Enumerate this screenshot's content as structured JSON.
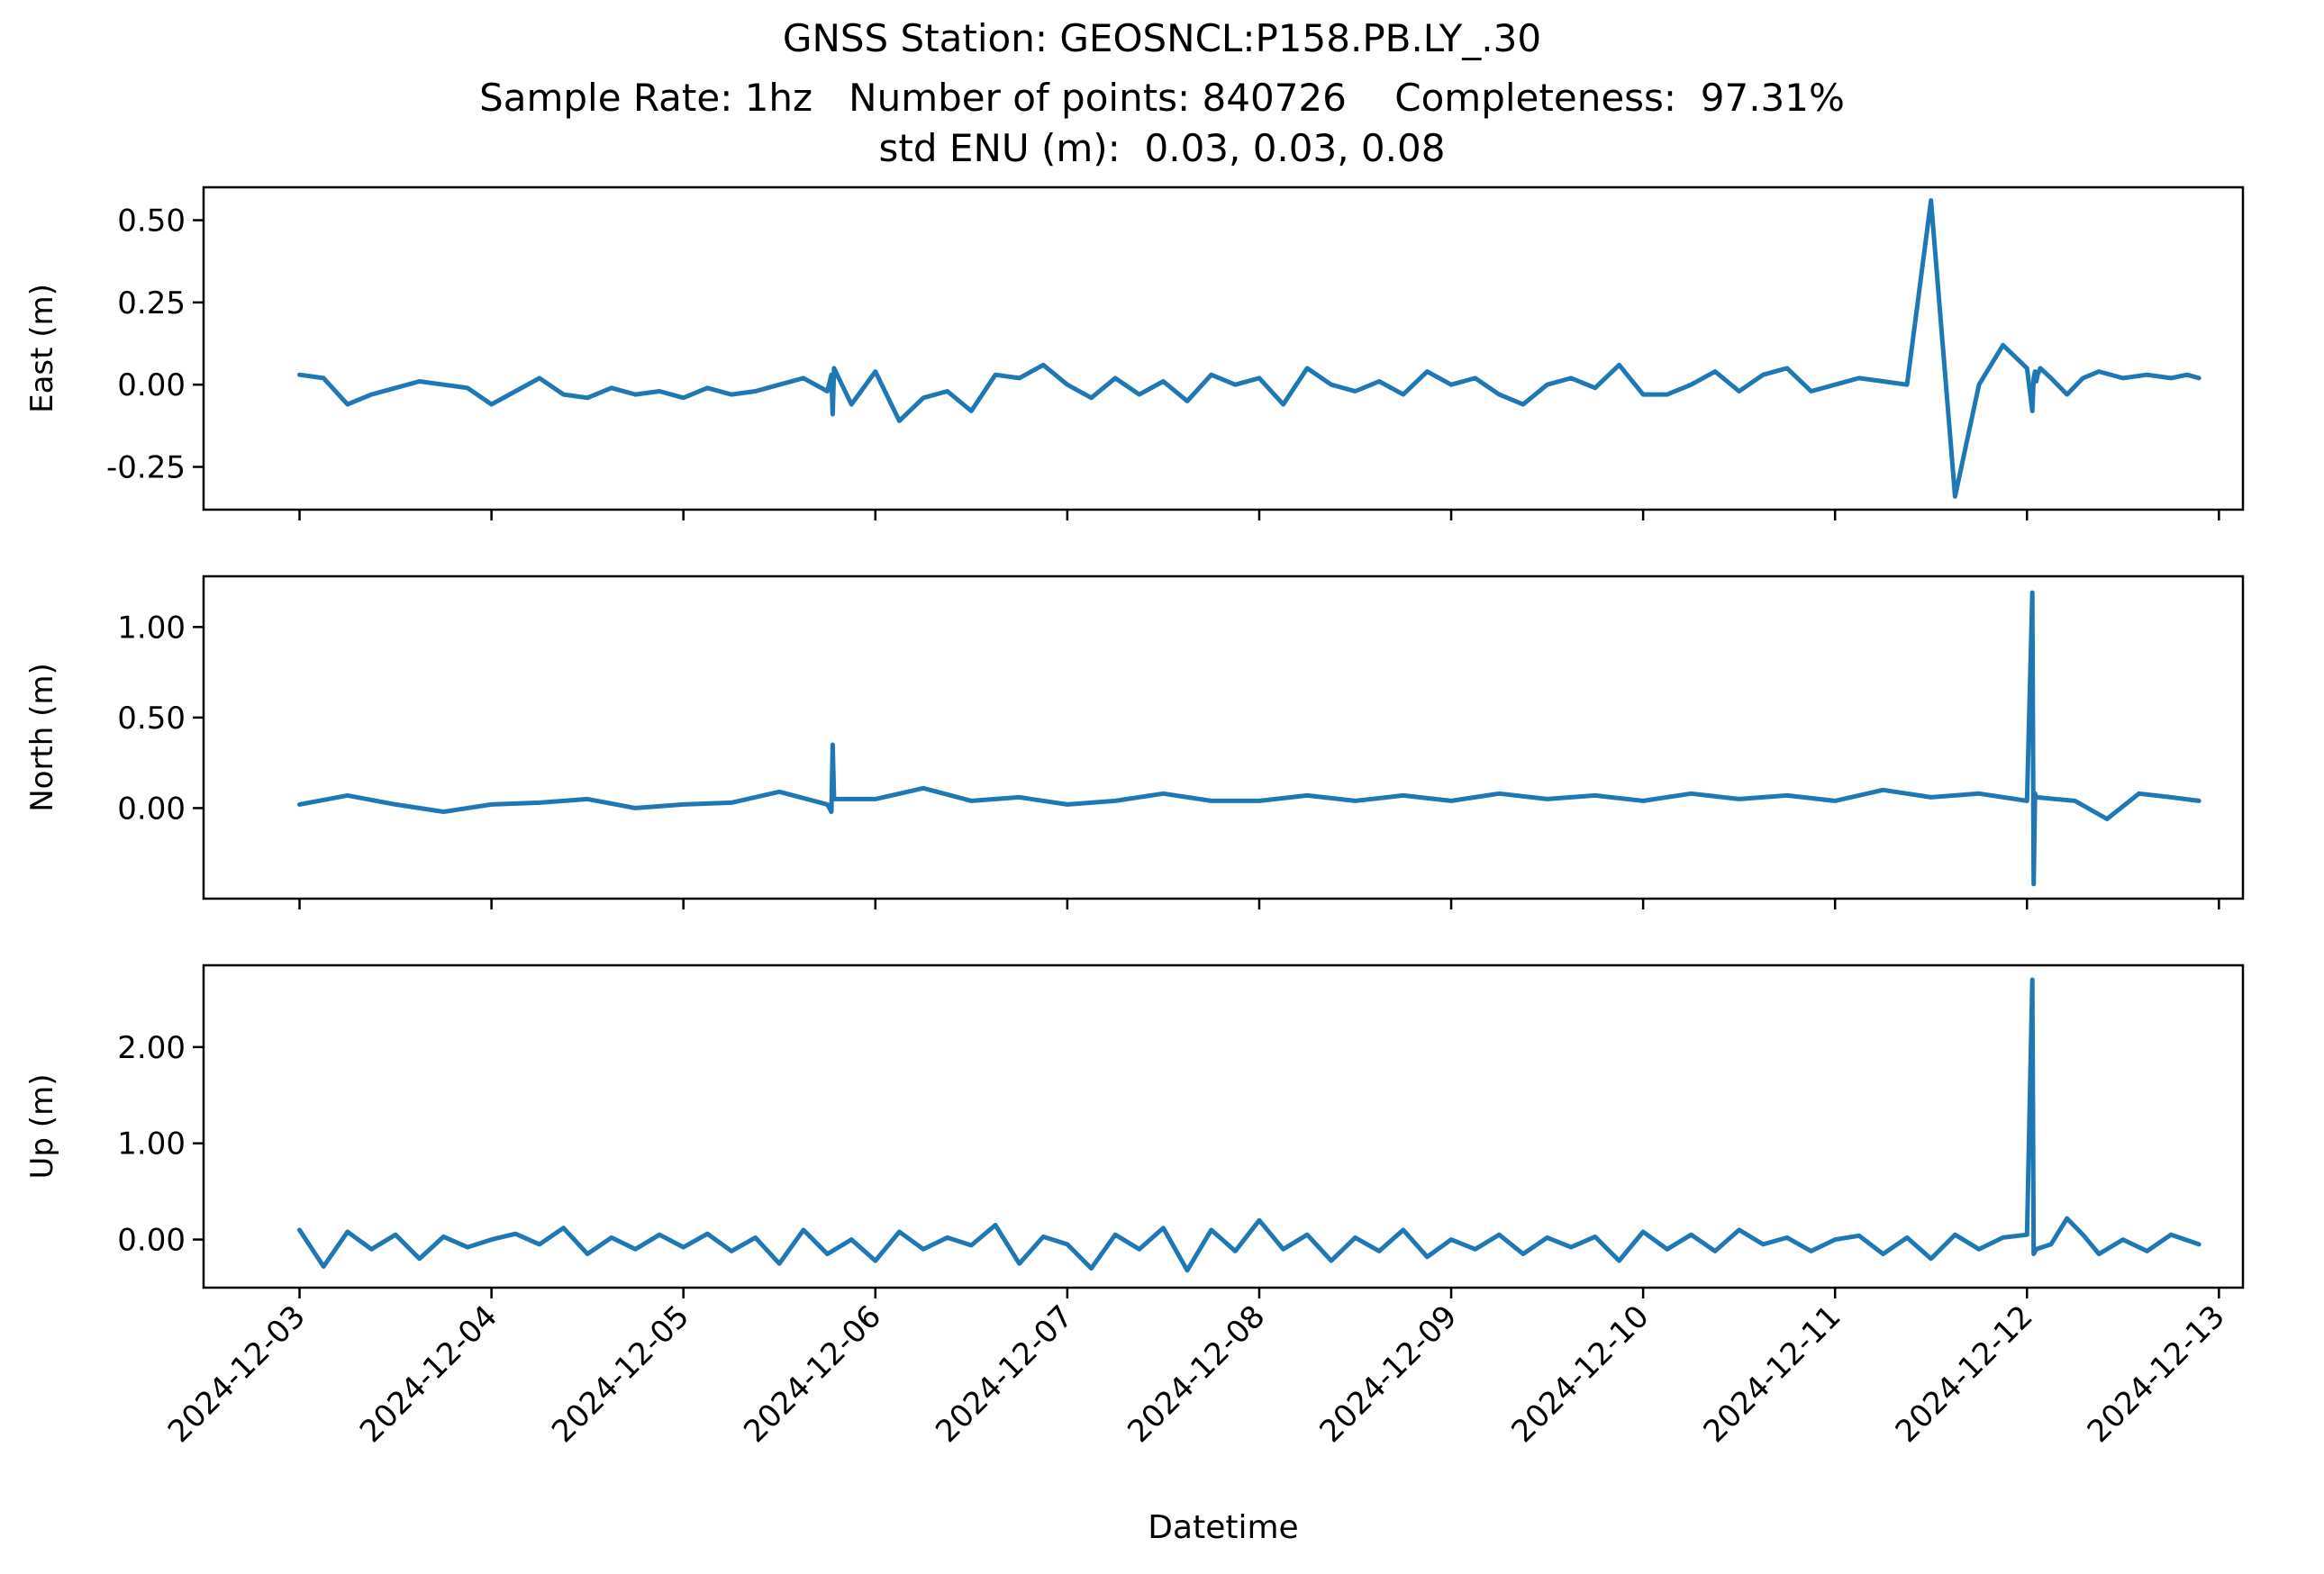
{
  "figure": {
    "title_line1": "GNSS Station: GEOSNCL:P158.PB.LY_.30",
    "title_line2": "Sample Rate: 1hz   Number of points: 840726    Completeness:  97.31%",
    "title_line3": "std ENU (m):  0.03, 0.03, 0.08",
    "xlabel": "Datetime",
    "line_color": "#1f77b4"
  },
  "chart_data": [
    {
      "type": "line",
      "title": "",
      "xlabel": "",
      "ylabel": "East (m)",
      "ylim": [
        -0.38,
        0.6
      ],
      "yticks": [
        0.5,
        0.25,
        0.0,
        -0.25
      ],
      "ytick_labels": [
        "0.50",
        "0.25",
        "0.00",
        "-0.25"
      ],
      "xlim": [
        "2024-12-02T12:00",
        "2024-12-13T03:00"
      ],
      "grid": false,
      "series": [
        {
          "x": [
            "2024-12-03T00:00",
            "2024-12-03T03:00",
            "2024-12-03T06:00",
            "2024-12-03T09:00",
            "2024-12-03T12:00",
            "2024-12-03T15:00",
            "2024-12-03T18:00",
            "2024-12-03T21:00",
            "2024-12-04T00:00",
            "2024-12-04T03:00",
            "2024-12-04T06:00",
            "2024-12-04T09:00",
            "2024-12-04T12:00",
            "2024-12-04T15:00",
            "2024-12-04T18:00",
            "2024-12-04T21:00",
            "2024-12-05T00:00",
            "2024-12-05T03:00",
            "2024-12-05T06:00",
            "2024-12-05T09:00",
            "2024-12-05T12:00",
            "2024-12-05T15:00",
            "2024-12-05T18:00",
            "2024-12-05T18:30",
            "2024-12-05T18:40",
            "2024-12-05T18:50",
            "2024-12-05T21:00",
            "2024-12-06T00:00",
            "2024-12-06T03:00",
            "2024-12-06T06:00",
            "2024-12-06T09:00",
            "2024-12-06T12:00",
            "2024-12-06T15:00",
            "2024-12-06T18:00",
            "2024-12-06T21:00",
            "2024-12-07T00:00",
            "2024-12-07T03:00",
            "2024-12-07T06:00",
            "2024-12-07T09:00",
            "2024-12-07T12:00",
            "2024-12-07T15:00",
            "2024-12-07T18:00",
            "2024-12-07T21:00",
            "2024-12-08T00:00",
            "2024-12-08T03:00",
            "2024-12-08T06:00",
            "2024-12-08T09:00",
            "2024-12-08T12:00",
            "2024-12-08T15:00",
            "2024-12-08T18:00",
            "2024-12-08T21:00",
            "2024-12-09T00:00",
            "2024-12-09T03:00",
            "2024-12-09T06:00",
            "2024-12-09T09:00",
            "2024-12-09T12:00",
            "2024-12-09T15:00",
            "2024-12-09T18:00",
            "2024-12-09T21:00",
            "2024-12-10T00:00",
            "2024-12-10T03:00",
            "2024-12-10T06:00",
            "2024-12-10T09:00",
            "2024-12-10T12:00",
            "2024-12-10T15:00",
            "2024-12-10T18:00",
            "2024-12-10T21:00",
            "2024-12-11T00:00",
            "2024-12-11T03:00",
            "2024-12-11T06:00",
            "2024-12-11T09:00",
            "2024-12-11T12:00",
            "2024-12-11T15:00",
            "2024-12-11T18:00",
            "2024-12-11T21:00",
            "2024-12-12T00:00",
            "2024-12-12T00:40",
            "2024-12-12T00:50",
            "2024-12-12T01:00",
            "2024-12-12T01:10",
            "2024-12-12T01:20",
            "2024-12-12T01:40",
            "2024-12-12T03:00",
            "2024-12-12T05:00",
            "2024-12-12T07:00",
            "2024-12-12T09:00",
            "2024-12-12T12:00",
            "2024-12-12T15:00",
            "2024-12-12T18:00",
            "2024-12-12T20:00",
            "2024-12-12T21:30"
          ],
          "y": [
            0.03,
            0.02,
            -0.06,
            -0.03,
            -0.01,
            0.01,
            0.0,
            -0.01,
            -0.06,
            -0.02,
            0.02,
            -0.03,
            -0.04,
            -0.01,
            -0.03,
            -0.02,
            -0.04,
            -0.01,
            -0.03,
            -0.02,
            0.0,
            0.02,
            -0.02,
            0.03,
            -0.09,
            0.05,
            -0.06,
            0.04,
            -0.11,
            -0.04,
            -0.02,
            -0.08,
            0.03,
            0.02,
            0.06,
            0.0,
            -0.04,
            0.02,
            -0.03,
            0.01,
            -0.05,
            0.03,
            0.0,
            0.02,
            -0.06,
            0.05,
            0.0,
            -0.02,
            0.01,
            -0.03,
            0.04,
            0.0,
            0.02,
            -0.03,
            -0.06,
            0.0,
            0.02,
            -0.01,
            0.06,
            -0.03,
            -0.03,
            0.0,
            0.04,
            -0.02,
            0.03,
            0.05,
            -0.02,
            0.0,
            0.02,
            0.01,
            0.0,
            0.56,
            -0.34,
            0.0,
            0.12,
            0.05,
            -0.08,
            0.02,
            0.04,
            0.01,
            0.03,
            0.05,
            0.02,
            -0.03,
            0.02,
            0.04,
            0.02,
            0.03,
            0.02,
            0.03,
            0.02
          ]
        }
      ]
    },
    {
      "type": "line",
      "title": "",
      "xlabel": "",
      "ylabel": "North (m)",
      "ylim": [
        -0.5,
        1.28
      ],
      "yticks": [
        1.0,
        0.5,
        0.0
      ],
      "ytick_labels": [
        "1.00",
        "0.50",
        "0.00"
      ],
      "xlim": [
        "2024-12-02T12:00",
        "2024-12-13T03:00"
      ],
      "grid": false,
      "series": [
        {
          "x": [
            "2024-12-03T00:00",
            "2024-12-03T06:00",
            "2024-12-03T12:00",
            "2024-12-03T18:00",
            "2024-12-04T00:00",
            "2024-12-04T06:00",
            "2024-12-04T12:00",
            "2024-12-04T18:00",
            "2024-12-05T00:00",
            "2024-12-05T06:00",
            "2024-12-05T12:00",
            "2024-12-05T18:00",
            "2024-12-05T18:30",
            "2024-12-05T18:40",
            "2024-12-05T18:50",
            "2024-12-06T00:00",
            "2024-12-06T06:00",
            "2024-12-06T12:00",
            "2024-12-06T18:00",
            "2024-12-07T00:00",
            "2024-12-07T06:00",
            "2024-12-07T12:00",
            "2024-12-07T18:00",
            "2024-12-08T00:00",
            "2024-12-08T06:00",
            "2024-12-08T12:00",
            "2024-12-08T18:00",
            "2024-12-09T00:00",
            "2024-12-09T06:00",
            "2024-12-09T12:00",
            "2024-12-09T18:00",
            "2024-12-10T00:00",
            "2024-12-10T06:00",
            "2024-12-10T12:00",
            "2024-12-10T18:00",
            "2024-12-11T00:00",
            "2024-12-11T06:00",
            "2024-12-11T12:00",
            "2024-12-11T18:00",
            "2024-12-12T00:00",
            "2024-12-12T00:40",
            "2024-12-12T00:50",
            "2024-12-12T01:00",
            "2024-12-12T01:10",
            "2024-12-12T06:00",
            "2024-12-12T10:00",
            "2024-12-12T14:00",
            "2024-12-12T18:00",
            "2024-12-12T21:30"
          ],
          "y": [
            0.02,
            0.07,
            0.02,
            -0.02,
            0.02,
            0.03,
            0.05,
            0.0,
            0.02,
            0.03,
            0.09,
            0.02,
            -0.02,
            0.35,
            0.05,
            0.05,
            0.11,
            0.04,
            0.06,
            0.02,
            0.04,
            0.08,
            0.04,
            0.04,
            0.07,
            0.04,
            0.07,
            0.04,
            0.08,
            0.05,
            0.07,
            0.04,
            0.08,
            0.05,
            0.07,
            0.04,
            0.1,
            0.06,
            0.08,
            0.04,
            1.19,
            -0.42,
            0.08,
            0.06,
            0.04,
            -0.06,
            0.08,
            0.06,
            0.04
          ]
        }
      ]
    },
    {
      "type": "line",
      "title": "",
      "xlabel": "Datetime",
      "ylabel": "Up (m)",
      "ylim": [
        -0.5,
        2.85
      ],
      "yticks": [
        2.0,
        1.0,
        0.0
      ],
      "ytick_labels": [
        "2.00",
        "1.00",
        "0.00"
      ],
      "xlim": [
        "2024-12-02T12:00",
        "2024-12-13T03:00"
      ],
      "x_tick_labels": [
        "2024-12-03",
        "2024-12-04",
        "2024-12-05",
        "2024-12-06",
        "2024-12-07",
        "2024-12-08",
        "2024-12-09",
        "2024-12-10",
        "2024-12-11",
        "2024-12-12",
        "2024-12-13"
      ],
      "grid": false,
      "series": [
        {
          "x": [
            "2024-12-03T00:00",
            "2024-12-03T03:00",
            "2024-12-03T06:00",
            "2024-12-03T09:00",
            "2024-12-03T12:00",
            "2024-12-03T15:00",
            "2024-12-03T18:00",
            "2024-12-03T21:00",
            "2024-12-04T00:00",
            "2024-12-04T03:00",
            "2024-12-04T06:00",
            "2024-12-04T09:00",
            "2024-12-04T12:00",
            "2024-12-04T15:00",
            "2024-12-04T18:00",
            "2024-12-04T21:00",
            "2024-12-05T00:00",
            "2024-12-05T03:00",
            "2024-12-05T06:00",
            "2024-12-05T09:00",
            "2024-12-05T12:00",
            "2024-12-05T15:00",
            "2024-12-05T18:00",
            "2024-12-05T21:00",
            "2024-12-06T00:00",
            "2024-12-06T03:00",
            "2024-12-06T06:00",
            "2024-12-06T09:00",
            "2024-12-06T12:00",
            "2024-12-06T15:00",
            "2024-12-06T18:00",
            "2024-12-06T21:00",
            "2024-12-07T00:00",
            "2024-12-07T03:00",
            "2024-12-07T06:00",
            "2024-12-07T09:00",
            "2024-12-07T12:00",
            "2024-12-07T15:00",
            "2024-12-07T18:00",
            "2024-12-07T21:00",
            "2024-12-08T00:00",
            "2024-12-08T03:00",
            "2024-12-08T06:00",
            "2024-12-08T09:00",
            "2024-12-08T12:00",
            "2024-12-08T15:00",
            "2024-12-08T18:00",
            "2024-12-08T21:00",
            "2024-12-09T00:00",
            "2024-12-09T03:00",
            "2024-12-09T06:00",
            "2024-12-09T09:00",
            "2024-12-09T12:00",
            "2024-12-09T15:00",
            "2024-12-09T18:00",
            "2024-12-09T21:00",
            "2024-12-10T00:00",
            "2024-12-10T03:00",
            "2024-12-10T06:00",
            "2024-12-10T09:00",
            "2024-12-10T12:00",
            "2024-12-10T15:00",
            "2024-12-10T18:00",
            "2024-12-10T21:00",
            "2024-12-11T00:00",
            "2024-12-11T03:00",
            "2024-12-11T06:00",
            "2024-12-11T09:00",
            "2024-12-11T12:00",
            "2024-12-11T15:00",
            "2024-12-11T18:00",
            "2024-12-11T21:00",
            "2024-12-12T00:00",
            "2024-12-12T00:40",
            "2024-12-12T00:50",
            "2024-12-12T01:10",
            "2024-12-12T03:00",
            "2024-12-12T05:00",
            "2024-12-12T07:00",
            "2024-12-12T09:00",
            "2024-12-12T12:00",
            "2024-12-12T15:00",
            "2024-12-12T18:00",
            "2024-12-12T21:30"
          ],
          "y": [
            0.1,
            -0.28,
            0.08,
            -0.1,
            0.05,
            -0.2,
            0.03,
            -0.08,
            0.0,
            0.06,
            -0.05,
            0.12,
            -0.15,
            0.02,
            -0.1,
            0.05,
            -0.08,
            0.06,
            -0.12,
            0.02,
            -0.25,
            0.1,
            -0.15,
            0.0,
            -0.22,
            0.08,
            -0.1,
            0.02,
            -0.06,
            0.15,
            -0.25,
            0.03,
            -0.05,
            -0.3,
            0.05,
            -0.1,
            0.12,
            -0.32,
            0.1,
            -0.12,
            0.2,
            -0.1,
            0.05,
            -0.22,
            0.02,
            -0.12,
            0.1,
            -0.18,
            0.0,
            -0.1,
            0.05,
            -0.15,
            0.02,
            -0.08,
            0.03,
            -0.22,
            0.08,
            -0.1,
            0.05,
            -0.12,
            0.1,
            -0.05,
            0.02,
            -0.12,
            0.0,
            0.04,
            -0.15,
            0.02,
            -0.2,
            0.05,
            -0.1,
            0.02,
            0.05,
            2.7,
            -0.15,
            -0.1,
            -0.05,
            0.22,
            0.05,
            -0.15,
            0.0,
            -0.12,
            0.05,
            -0.05
          ]
        }
      ]
    }
  ]
}
